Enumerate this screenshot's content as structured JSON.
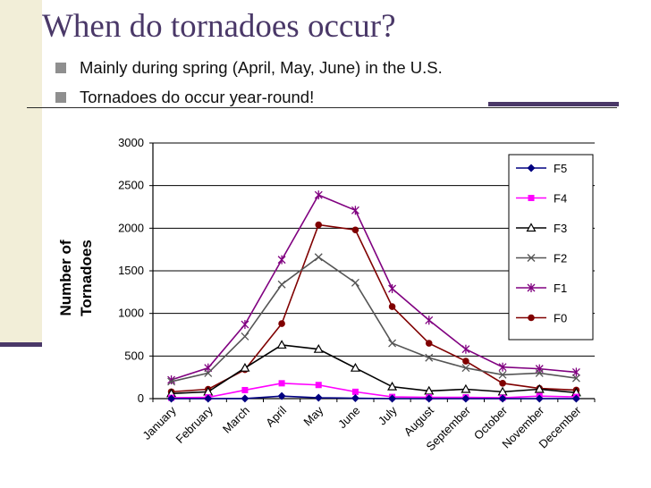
{
  "slide": {
    "title": "When do tornadoes occur?",
    "bullets": [
      "Mainly during spring (April, May, June) in the U.S.",
      "Tornadoes do occur year-round!"
    ]
  },
  "colors": {
    "accent": "#4a3868",
    "sidebar": "#f2eed8"
  },
  "chart_data": {
    "type": "line",
    "ylabel_lines": [
      "Number of",
      "Tornadoes"
    ],
    "ylim": [
      0,
      3000
    ],
    "yticks": [
      0,
      500,
      1000,
      1500,
      2000,
      2500,
      3000
    ],
    "grid": true,
    "legend_position": "right",
    "categories": [
      "January",
      "February",
      "March",
      "April",
      "May",
      "June",
      "July",
      "August",
      "September",
      "October",
      "November",
      "December"
    ],
    "series": [
      {
        "name": "F5",
        "color": "#000080",
        "marker": "diamond",
        "values": [
          0,
          0,
          1,
          30,
          10,
          5,
          0,
          0,
          0,
          0,
          0,
          0
        ]
      },
      {
        "name": "F4",
        "color": "#ff00ff",
        "marker": "square",
        "values": [
          10,
          15,
          100,
          180,
          160,
          80,
          20,
          15,
          15,
          10,
          30,
          20
        ]
      },
      {
        "name": "F3",
        "color": "#000000",
        "marker": "triangle",
        "values": [
          60,
          80,
          360,
          630,
          580,
          360,
          140,
          90,
          110,
          80,
          110,
          70
        ]
      },
      {
        "name": "F2",
        "color": "#555555",
        "marker": "x",
        "values": [
          200,
          300,
          730,
          1340,
          1660,
          1360,
          650,
          480,
          360,
          280,
          300,
          240
        ]
      },
      {
        "name": "F1",
        "color": "#800080",
        "marker": "star",
        "values": [
          220,
          360,
          870,
          1630,
          2390,
          2210,
          1290,
          920,
          580,
          370,
          350,
          310
        ]
      },
      {
        "name": "F0",
        "color": "#800000",
        "marker": "circle",
        "values": [
          80,
          110,
          340,
          880,
          2040,
          1980,
          1080,
          650,
          440,
          180,
          120,
          100
        ]
      }
    ]
  }
}
